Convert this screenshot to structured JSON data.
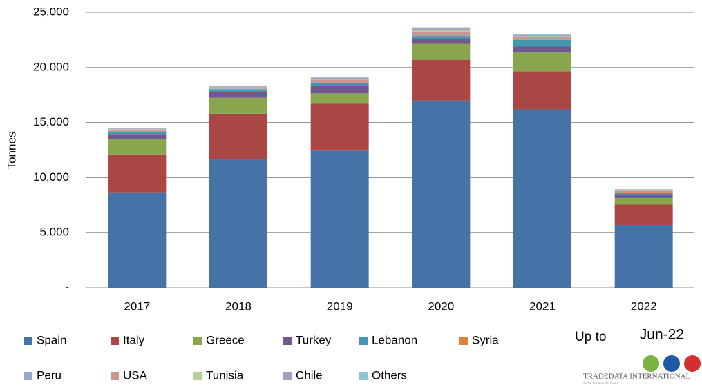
{
  "chart_data": {
    "type": "stacked_bar",
    "y_label": "Tonnes",
    "categories": [
      "2017",
      "2018",
      "2019",
      "2020",
      "2021",
      "2022"
    ],
    "series": [
      {
        "name": "Spain",
        "color": "#4572a7",
        "values": [
          8600,
          11650,
          12450,
          17000,
          16200,
          5700
        ]
      },
      {
        "name": "Italy",
        "color": "#aa4643",
        "values": [
          3500,
          4150,
          4250,
          3700,
          3450,
          1850
        ]
      },
      {
        "name": "Greece",
        "color": "#89a54e",
        "values": [
          1400,
          1450,
          950,
          1450,
          1700,
          600
        ]
      },
      {
        "name": "Turkey",
        "color": "#71588f",
        "values": [
          450,
          500,
          700,
          450,
          550,
          350
        ]
      },
      {
        "name": "Lebanon",
        "color": "#4198af",
        "values": [
          200,
          250,
          250,
          250,
          600,
          100
        ]
      },
      {
        "name": "Syria",
        "color": "#db843d",
        "values": [
          50,
          50,
          50,
          50,
          50,
          50
        ]
      },
      {
        "name": "Peru",
        "color": "#93a9cf",
        "values": [
          50,
          50,
          100,
          100,
          100,
          50
        ]
      },
      {
        "name": "USA",
        "color": "#d19392",
        "values": [
          100,
          100,
          150,
          250,
          150,
          100
        ]
      },
      {
        "name": "Tunisia",
        "color": "#b9cd96",
        "values": [
          50,
          30,
          50,
          100,
          50,
          50
        ]
      },
      {
        "name": "Chile",
        "color": "#a99bbd",
        "values": [
          50,
          40,
          100,
          200,
          100,
          50
        ]
      },
      {
        "name": "Others",
        "color": "#91c3d5",
        "values": [
          50,
          30,
          50,
          100,
          100,
          50
        ]
      }
    ],
    "ylim": [
      0,
      25000
    ],
    "yticks": [
      {
        "value": 0,
        "label": "-"
      },
      {
        "value": 5000,
        "label": "5,000"
      },
      {
        "value": 10000,
        "label": "10,000"
      },
      {
        "value": 15000,
        "label": "15,000"
      },
      {
        "value": 20000,
        "label": "20,000"
      },
      {
        "value": 25000,
        "label": "25,000"
      }
    ],
    "grid": true,
    "legend": "bottom",
    "note_prefix": "Up to",
    "note_date": "Jun-22",
    "brand": "TRADEDATA INTERNATIONAL",
    "tagline": "Better business decisions."
  }
}
